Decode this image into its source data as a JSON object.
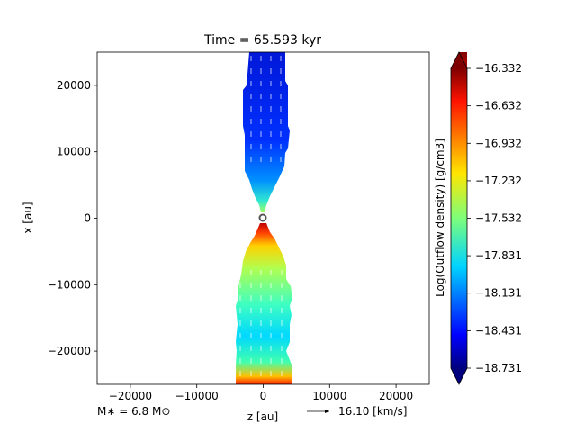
{
  "chart_data": {
    "type": "heatmap",
    "title": "Time = 65.593 kyr",
    "xlabel": "z [au]",
    "ylabel": "x [au]",
    "xlim": [
      -25000,
      25000
    ],
    "ylim": [
      -25000,
      25000
    ],
    "xticks": [
      -20000,
      -10000,
      0,
      10000,
      20000
    ],
    "xtick_labels": [
      "−20000",
      "−10000",
      "0",
      "10000",
      "20000"
    ],
    "yticks": [
      20000,
      10000,
      0,
      -10000,
      -20000
    ],
    "ytick_labels": [
      "20000",
      "10000",
      "0",
      "−10000",
      "−20000"
    ],
    "grid": false,
    "colorbar": {
      "label": "Log(Outflow density) [g/cm3]",
      "vmin": -18.731,
      "vmax": -16.332,
      "ticks": [
        -16.332,
        -16.632,
        -16.932,
        -17.232,
        -17.532,
        -17.831,
        -18.131,
        -18.431,
        -18.731
      ],
      "tick_labels": [
        "−16.332",
        "−16.632",
        "−16.932",
        "−17.232",
        "−17.532",
        "−17.831",
        "−18.131",
        "−18.431",
        "−18.731"
      ],
      "colormap": "jet",
      "extend": "both"
    },
    "annotations": {
      "mass": "M∗ = 6.8 M⊙",
      "velocity_scale": "16.10 [km/s]"
    },
    "outflow_lobes": [
      {
        "name": "upper",
        "z_range": [
          -2500,
          3500
        ],
        "x_range": [
          3000,
          25000
        ],
        "log_density": -18.55
      },
      {
        "name": "lower",
        "z_range": [
          -4000,
          4000
        ],
        "x_range": [
          -25000,
          -2000
        ],
        "log_density": -17.7
      }
    ],
    "source_marker": {
      "z": 0,
      "x": 0
    },
    "colors": {
      "vector_arrows": "#ffffff",
      "source_ring": "#555555"
    }
  }
}
